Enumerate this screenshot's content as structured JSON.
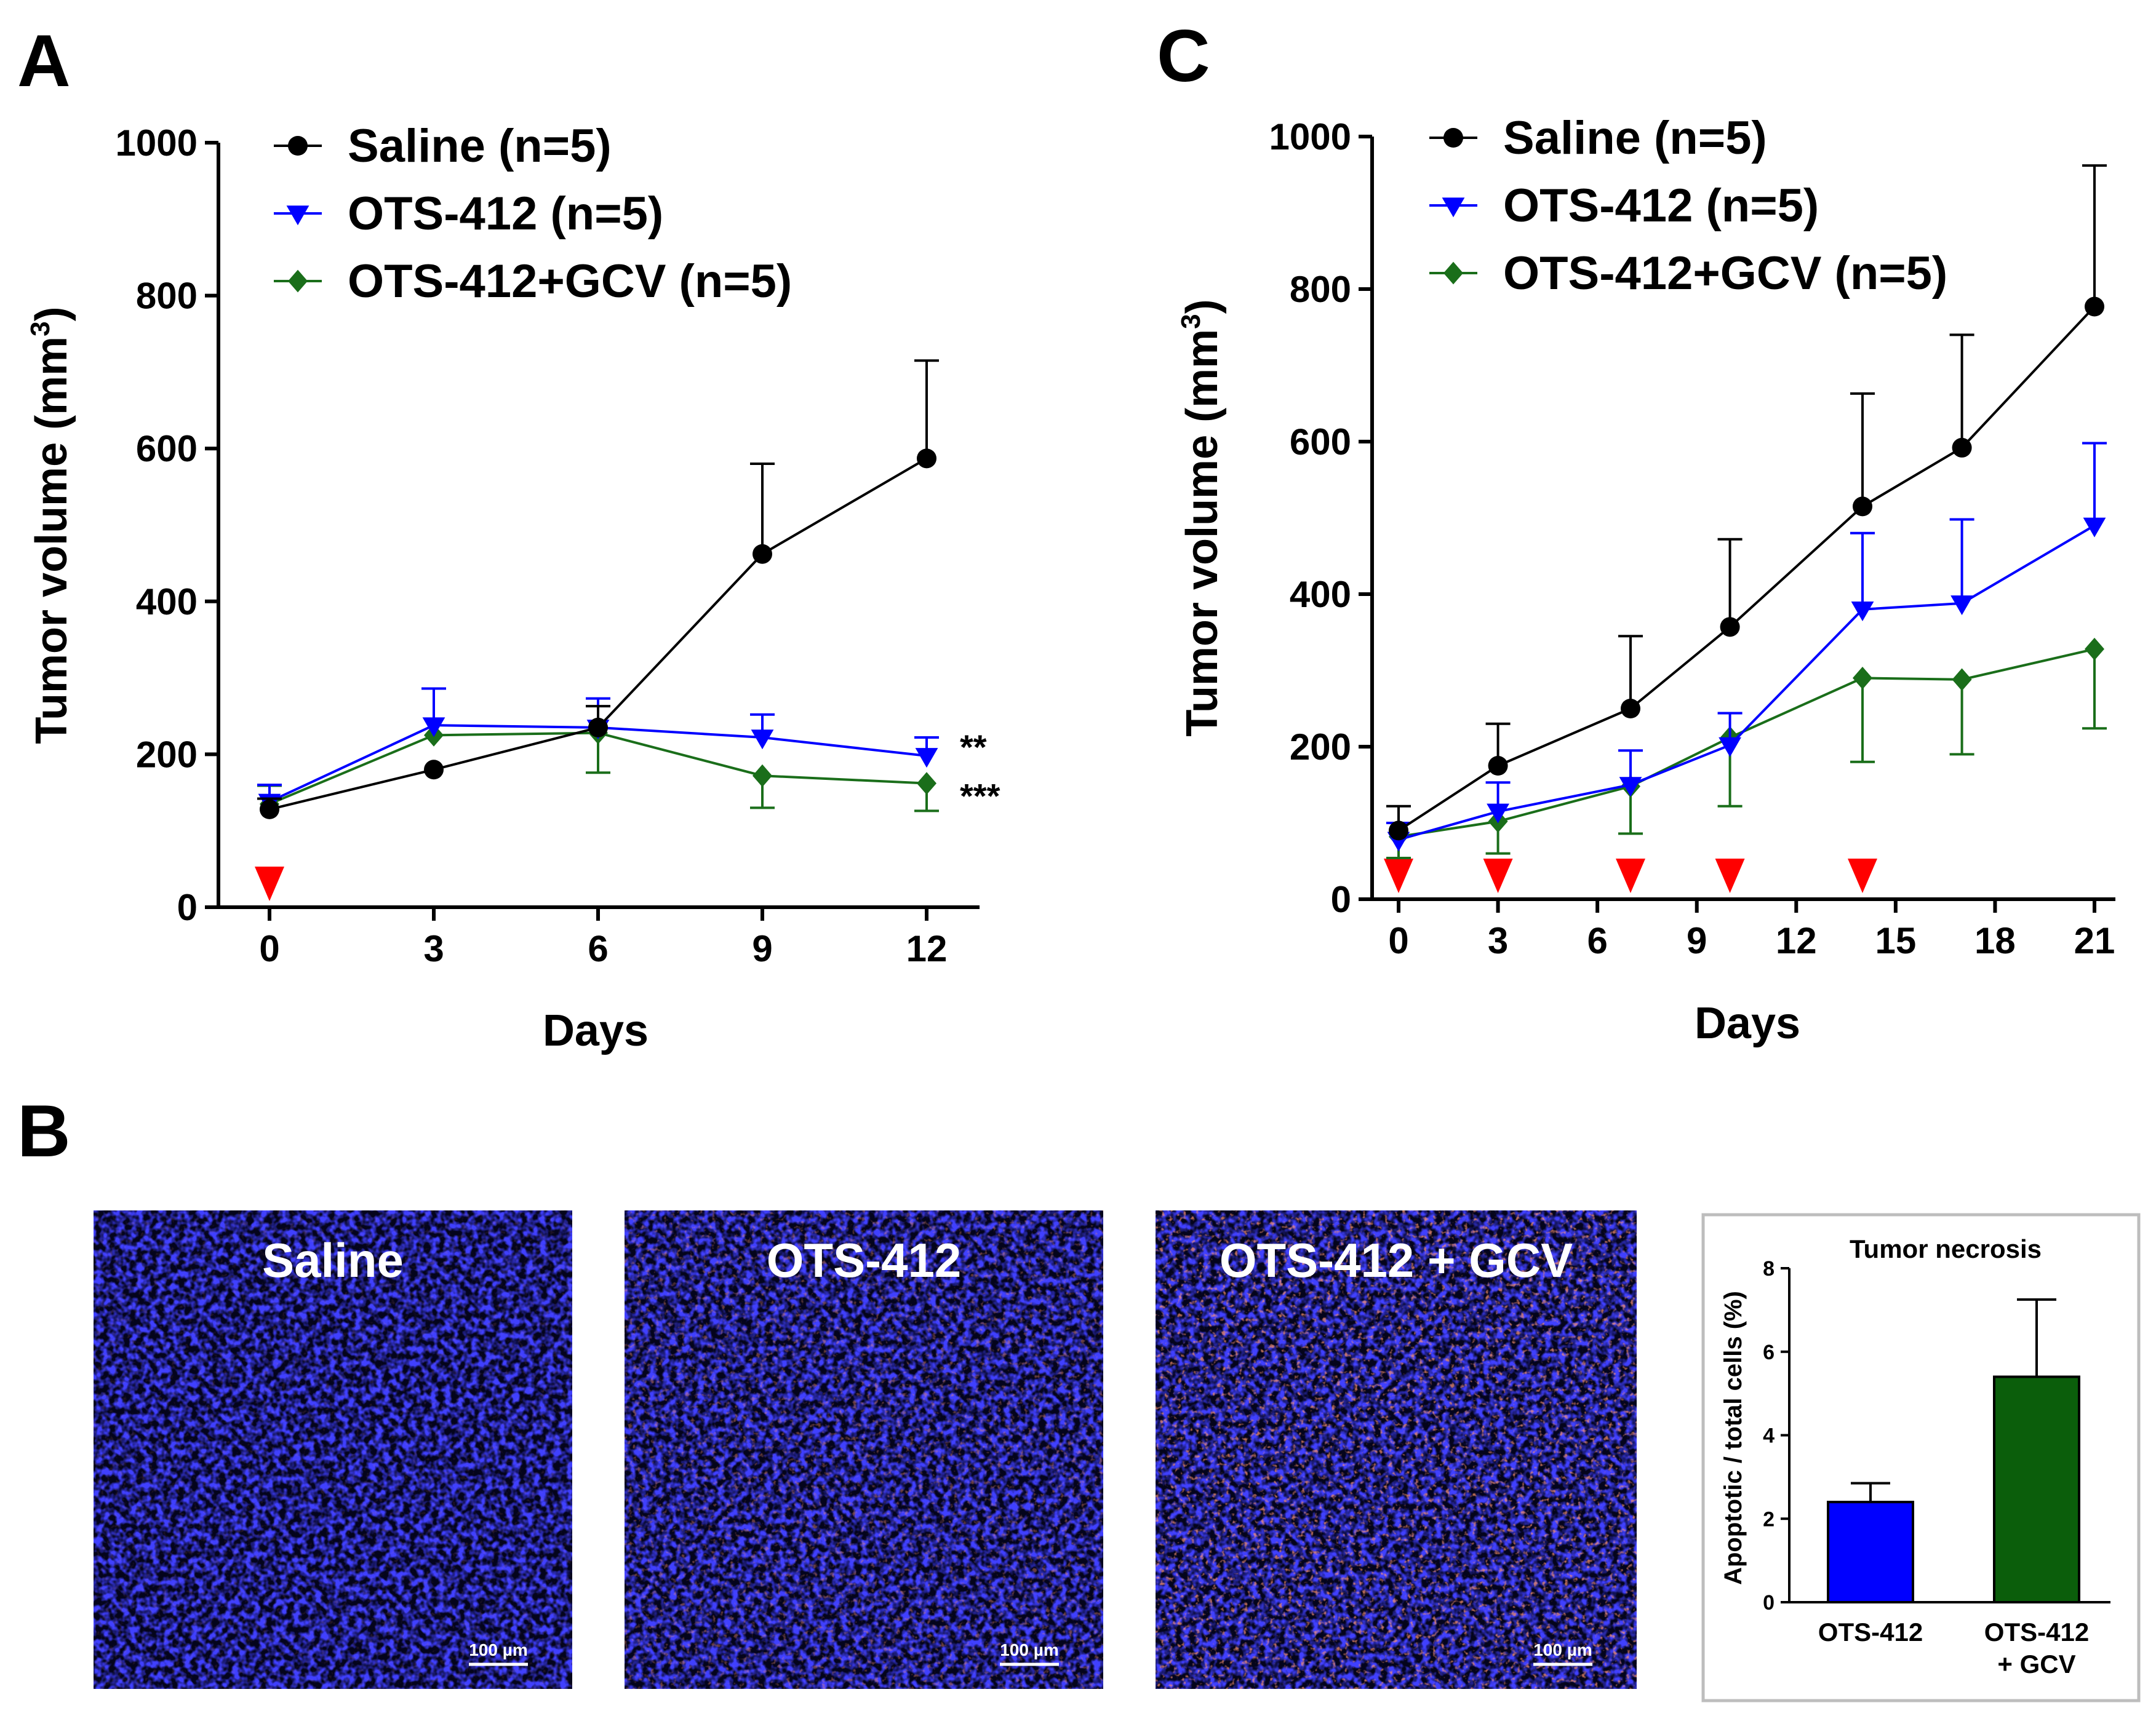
{
  "chart_data": [
    {
      "id": "A",
      "type": "line",
      "panel_label": "A",
      "xlabel": "Days",
      "ylabel": "Tumor volume (mm",
      "ylabel_sup": "3",
      "ylabel_close": ")",
      "xlim": [
        0,
        12
      ],
      "ylim": [
        0,
        1000
      ],
      "xticks": [
        0,
        3,
        6,
        9,
        12
      ],
      "yticks": [
        0,
        200,
        400,
        600,
        800,
        1000
      ],
      "treatment_days": [
        0
      ],
      "series": [
        {
          "name": "Saline (n=5)",
          "color": "#000000",
          "marker": "circle",
          "x": [
            0,
            3,
            6,
            9,
            12
          ],
          "y": [
            128,
            180,
            235,
            462,
            587
          ],
          "err": [
            14,
            0,
            28,
            118,
            128
          ]
        },
        {
          "name": "OTS-412 (n=5)",
          "color": "#0000ff",
          "marker": "triangle-down",
          "x": [
            0,
            3,
            6,
            9,
            12
          ],
          "y": [
            138,
            238,
            235,
            222,
            198
          ],
          "err": [
            22,
            48,
            38,
            30,
            24
          ]
        },
        {
          "name": "OTS-412+GCV (n=5)",
          "color": "#1a6e1a",
          "marker": "diamond",
          "x": [
            0,
            3,
            6,
            9,
            12
          ],
          "y": [
            135,
            225,
            228,
            172,
            162
          ],
          "err": [
            24,
            0,
            52,
            42,
            36
          ]
        }
      ],
      "annotations": [
        {
          "text": "**",
          "series": 1
        },
        {
          "text": "***",
          "series": 2
        }
      ]
    },
    {
      "id": "C",
      "type": "line",
      "panel_label": "C",
      "xlabel": "Days",
      "ylabel": "Tumor volume (mm",
      "ylabel_sup": "3",
      "ylabel_close": ")",
      "xlim": [
        0,
        21
      ],
      "ylim": [
        0,
        1000
      ],
      "xticks": [
        0,
        3,
        6,
        9,
        12,
        15,
        18,
        21
      ],
      "yticks": [
        0,
        200,
        400,
        600,
        800,
        1000
      ],
      "treatment_days": [
        0,
        3,
        7,
        10,
        14
      ],
      "series": [
        {
          "name": "Saline (n=5)",
          "color": "#000000",
          "marker": "circle",
          "x": [
            0,
            3,
            7,
            10,
            14,
            17,
            21
          ],
          "y": [
            90,
            175,
            250,
            357,
            515,
            592,
            777
          ],
          "err": [
            32,
            55,
            95,
            115,
            148,
            148,
            185
          ]
        },
        {
          "name": "OTS-412 (n=5)",
          "color": "#0000ff",
          "marker": "triangle-down",
          "x": [
            0,
            3,
            7,
            10,
            14,
            17,
            21
          ],
          "y": [
            78,
            115,
            150,
            202,
            380,
            388,
            490
          ],
          "err": [
            22,
            38,
            45,
            42,
            100,
            110,
            108
          ]
        },
        {
          "name": "OTS-412+GCV (n=5)",
          "color": "#1a6e1a",
          "marker": "diamond",
          "x": [
            0,
            3,
            7,
            10,
            14,
            17,
            21
          ],
          "y": [
            82,
            102,
            148,
            212,
            290,
            288,
            328
          ],
          "err": [
            28,
            42,
            62,
            90,
            110,
            98,
            104
          ]
        }
      ]
    },
    {
      "id": "B-inset",
      "type": "bar",
      "title": "Tumor necrosis",
      "ylabel": "Apoptotic / total cells (%)",
      "ylim": [
        0,
        8
      ],
      "yticks": [
        0,
        2,
        4,
        6,
        8
      ],
      "categories": [
        [
          "OTS-412"
        ],
        [
          "OTS-412",
          "+ GCV"
        ]
      ],
      "values": [
        2.4,
        5.4
      ],
      "err": [
        0.45,
        1.85
      ],
      "colors": [
        "#0000ff",
        "#0b5e0b"
      ]
    }
  ],
  "panel_b": {
    "label": "B",
    "images": [
      {
        "title": "Saline",
        "scale": "100 µm",
        "red_level": 0.12
      },
      {
        "title": "OTS-412",
        "scale": "100 µm",
        "red_level": 0.4
      },
      {
        "title": "OTS-412 + GCV",
        "scale": "100 µm",
        "red_level": 0.7
      }
    ]
  }
}
